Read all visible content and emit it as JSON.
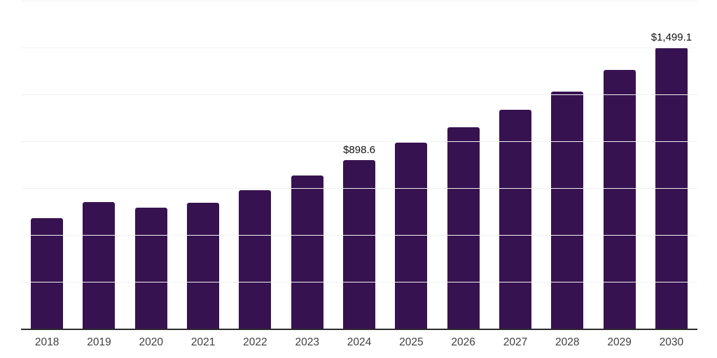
{
  "chart_data": {
    "type": "bar",
    "categories": [
      "2018",
      "2019",
      "2020",
      "2021",
      "2022",
      "2023",
      "2024",
      "2025",
      "2026",
      "2027",
      "2028",
      "2029",
      "2030"
    ],
    "values": [
      588,
      676,
      646,
      672,
      737,
      817,
      898.6,
      991,
      1075,
      1168,
      1265,
      1380,
      1499.1
    ],
    "bar_labels": [
      "",
      "",
      "",
      "",
      "",
      "",
      "$898.6",
      "",
      "",
      "",
      "",
      "",
      "$1,499.1"
    ],
    "ylim": [
      0,
      1750
    ],
    "grid_step": 250,
    "grid": true,
    "legend": "none",
    "colors": {
      "bar": "#371250",
      "gridline": "#f2f2f2",
      "axis": "#2b2b2b",
      "xtick_label": "#3f3f3f",
      "value_label": "#111111"
    }
  }
}
